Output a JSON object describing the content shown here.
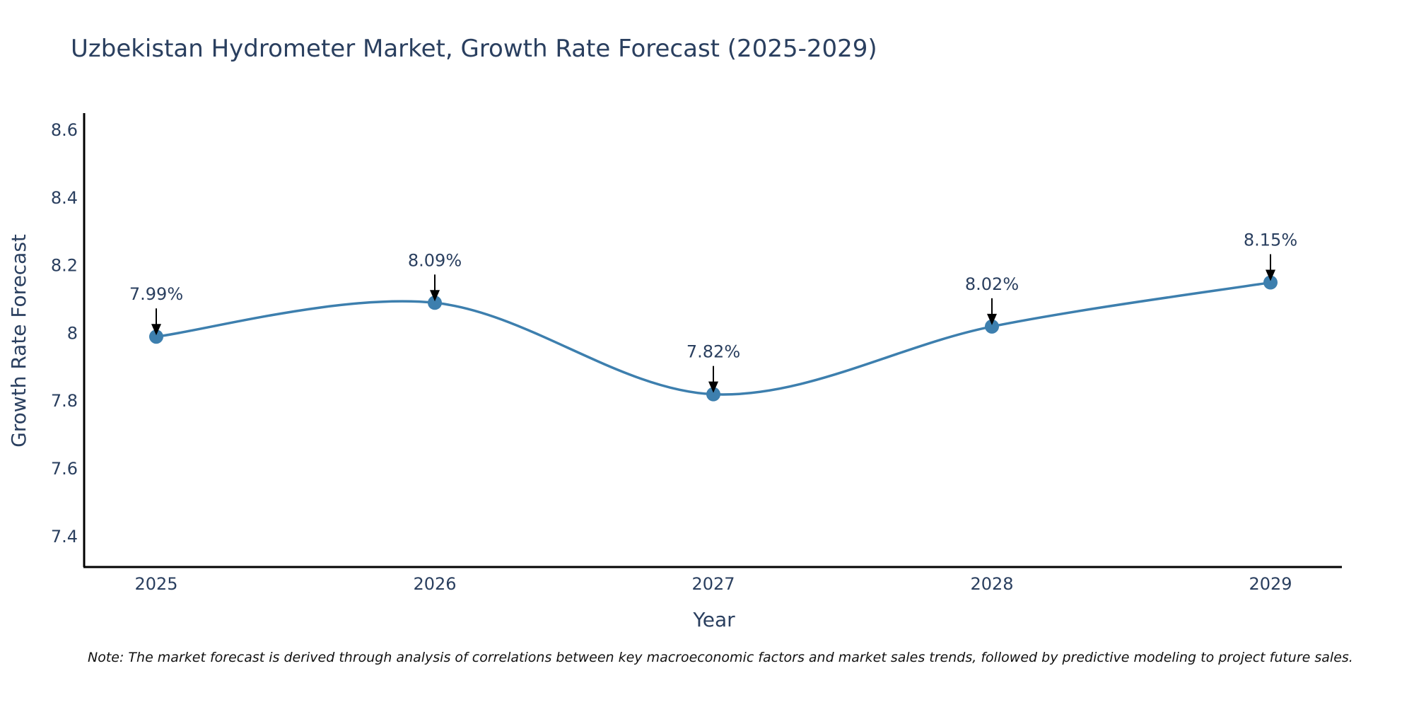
{
  "chart_data": {
    "type": "line",
    "title": "Uzbekistan Hydrometer Market, Growth Rate Forecast (2025-2029)",
    "xlabel": "Year",
    "ylabel": "Growth Rate Forecast",
    "categories": [
      "2025",
      "2026",
      "2027",
      "2028",
      "2029"
    ],
    "values": [
      7.99,
      8.09,
      7.82,
      8.02,
      8.15
    ],
    "data_labels": [
      "7.99%",
      "8.09%",
      "7.82%",
      "8.02%",
      "8.15%"
    ],
    "yticks": [
      7.4,
      7.6,
      7.8,
      8,
      8.2,
      8.4,
      8.6
    ],
    "ytick_labels": [
      "7.4",
      "7.6",
      "7.8",
      "8",
      "8.2",
      "8.4",
      "8.6"
    ],
    "ylim": [
      7.31,
      8.65
    ],
    "grid": false,
    "line_shape": "spline",
    "colors": {
      "line": "#3d7fae",
      "marker": "#3d7fae",
      "axis": "#000000",
      "arrow": "#000000",
      "text": "#2a3f5f"
    }
  },
  "note": "Note: The market forecast is derived through analysis of correlations between key macroeconomic factors and market sales trends, followed by predictive modeling to project future sales."
}
